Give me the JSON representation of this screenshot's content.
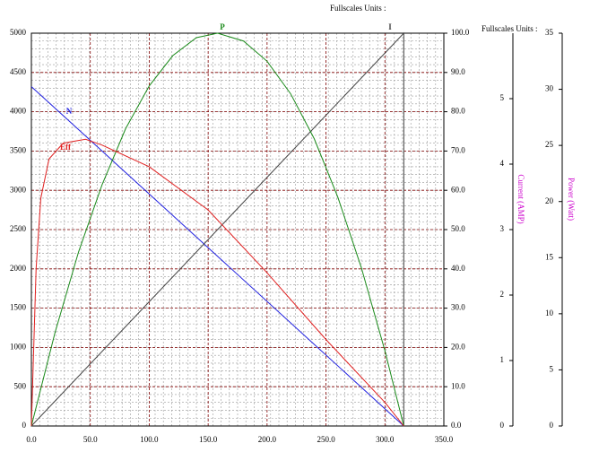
{
  "chart_data": {
    "type": "line",
    "annotations": [
      "Fullscales Units :",
      "Fullscales Units :"
    ],
    "y3label": "Current (AMP)",
    "y4label": "Power (Watt)",
    "xlim": [
      0,
      350
    ],
    "xticks": [
      {
        "value": 0,
        "label": "0.0"
      },
      {
        "value": 50,
        "label": "50.0"
      },
      {
        "value": 100,
        "label": "100.0"
      },
      {
        "value": 150,
        "label": "150.0"
      },
      {
        "value": 200,
        "label": "200.0"
      },
      {
        "value": 250,
        "label": "250.0"
      },
      {
        "value": 300,
        "label": "300.0"
      },
      {
        "value": 350,
        "label": "350.0"
      }
    ],
    "ylim": [
      0,
      5000
    ],
    "yticks": [
      0,
      500,
      1000,
      1500,
      2000,
      2500,
      3000,
      3500,
      4000,
      4500,
      5000
    ],
    "y2lim": [
      0,
      100
    ],
    "y2ticks": [
      {
        "value": 0,
        "label": "0.0"
      },
      {
        "value": 10,
        "label": "10.0"
      },
      {
        "value": 20,
        "label": "20.0"
      },
      {
        "value": 30,
        "label": "30.0"
      },
      {
        "value": 40,
        "label": "40.0"
      },
      {
        "value": 50,
        "label": "50.0"
      },
      {
        "value": 60,
        "label": "60.0"
      },
      {
        "value": 70,
        "label": "70.0"
      },
      {
        "value": 80,
        "label": "80.0"
      },
      {
        "value": 90,
        "label": "90.0"
      },
      {
        "value": 100,
        "label": "100.0"
      }
    ],
    "y3lim": [
      0,
      6
    ],
    "y3ticks": [
      0,
      1,
      2,
      3,
      4,
      5
    ],
    "y4lim": [
      0,
      35
    ],
    "y4ticks": [
      0,
      5,
      10,
      15,
      20,
      25,
      30,
      35
    ],
    "grid": true,
    "series": [
      {
        "name": "N",
        "color": "#2020e0",
        "axis": "y",
        "x": [
          0,
          316
        ],
        "values": [
          4320,
          0
        ]
      },
      {
        "name": "I",
        "color": "#444444",
        "axis": "y3",
        "x": [
          0,
          316,
          316
        ],
        "values": [
          0,
          6,
          0
        ]
      },
      {
        "name": "P",
        "color": "#1a8a1a",
        "axis": "y4",
        "x": [
          0,
          20,
          40,
          60,
          80,
          100,
          120,
          140,
          158,
          180,
          200,
          220,
          240,
          260,
          280,
          300,
          316
        ],
        "values": [
          0,
          8.3,
          15.5,
          21.5,
          26.5,
          30.3,
          33.0,
          34.6,
          35,
          34.3,
          32.5,
          29.6,
          25.6,
          20.4,
          14.1,
          6.7,
          0
        ]
      },
      {
        "name": "Eff",
        "color": "#e02020",
        "axis": "y2",
        "x": [
          0,
          4,
          8,
          15,
          27,
          46,
          60,
          100,
          150,
          200,
          250,
          300,
          316
        ],
        "values": [
          0,
          40,
          58,
          68,
          72,
          73,
          71.5,
          66,
          55,
          39,
          22,
          6,
          0
        ]
      }
    ]
  }
}
